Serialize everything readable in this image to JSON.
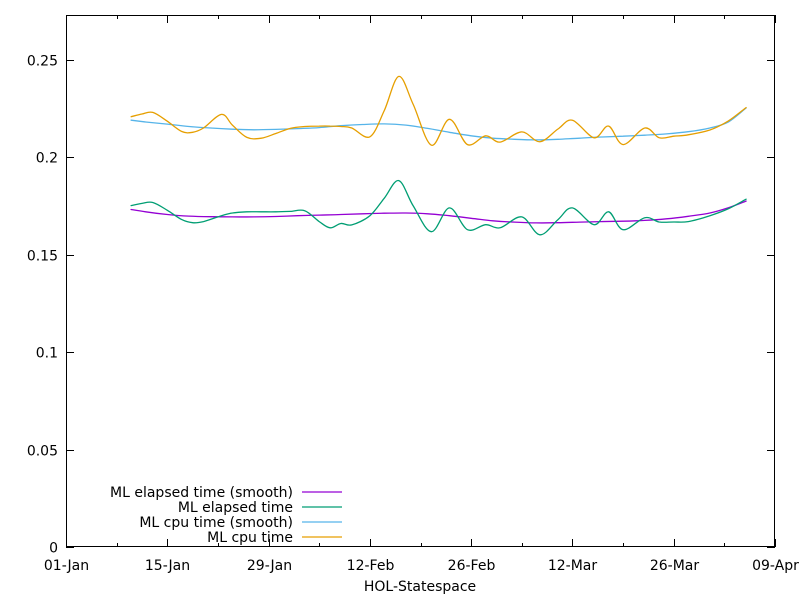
{
  "window": {
    "background": "#ffffff",
    "border_color": "#000000",
    "text_color": "#000000"
  },
  "chart_data": {
    "type": "line",
    "title": "",
    "xlabel": "HOL-Statespace",
    "ylabel": "",
    "grid": false,
    "legend": {
      "position": "inside-bottom-left",
      "entries_follow_series_order": true
    },
    "x_axis": {
      "kind": "date",
      "range_days": [
        0,
        98
      ],
      "major_ticks": [
        {
          "day": 0,
          "label": "01-Jan"
        },
        {
          "day": 14,
          "label": "15-Jan"
        },
        {
          "day": 28,
          "label": "29-Jan"
        },
        {
          "day": 42,
          "label": "12-Feb"
        },
        {
          "day": 56,
          "label": "26-Feb"
        },
        {
          "day": 70,
          "label": "12-Mar"
        },
        {
          "day": 84,
          "label": "26-Mar"
        },
        {
          "day": 98,
          "label": "09-Apr"
        }
      ],
      "minor_tick_days": [
        7,
        21,
        35,
        49,
        63,
        77,
        91
      ]
    },
    "y_axis": {
      "range": [
        0,
        0.273
      ],
      "ticks": [
        {
          "value": 0,
          "label": "0"
        },
        {
          "value": 0.05,
          "label": "0.05"
        },
        {
          "value": 0.1,
          "label": "0.1"
        },
        {
          "value": 0.15,
          "label": "0.15"
        },
        {
          "value": 0.2,
          "label": "0.2"
        },
        {
          "value": 0.25,
          "label": "0.25"
        }
      ]
    },
    "series": [
      {
        "name": "ML elapsed time (smooth)",
        "color": "#9400d3",
        "days": [
          9,
          11,
          14,
          17,
          20,
          23,
          26,
          29,
          32,
          35,
          38,
          41,
          44,
          47,
          50,
          53,
          56,
          59,
          62,
          65,
          68,
          71,
          74,
          77,
          80,
          83,
          86,
          89,
          91.5,
          94
        ],
        "values": [
          0.1732,
          0.172,
          0.1706,
          0.1698,
          0.1695,
          0.1694,
          0.1694,
          0.1696,
          0.17,
          0.1703,
          0.1706,
          0.171,
          0.1713,
          0.1714,
          0.171,
          0.17,
          0.1687,
          0.1674,
          0.1667,
          0.1663,
          0.1664,
          0.1667,
          0.167,
          0.1672,
          0.1676,
          0.1684,
          0.1697,
          0.1714,
          0.174,
          0.1775
        ]
      },
      {
        "name": "ML elapsed time",
        "color": "#009e73",
        "days": [
          9,
          10.5,
          12,
          14,
          16,
          17.5,
          19,
          21.5,
          23,
          25,
          27,
          29,
          31,
          33,
          35,
          36.5,
          38,
          39.5,
          42,
          44,
          46,
          48,
          50.5,
          53,
          55.5,
          58,
          60,
          63,
          65.5,
          68,
          70,
          73,
          75,
          77,
          80,
          82,
          84,
          86,
          89,
          91.5,
          94
        ],
        "values": [
          0.1752,
          0.1763,
          0.1768,
          0.1728,
          0.168,
          0.1664,
          0.167,
          0.17,
          0.1714,
          0.172,
          0.172,
          0.172,
          0.1722,
          0.1726,
          0.167,
          0.1638,
          0.166,
          0.1653,
          0.17,
          0.179,
          0.188,
          0.175,
          0.1618,
          0.174,
          0.1628,
          0.1654,
          0.1638,
          0.1694,
          0.1602,
          0.168,
          0.174,
          0.1654,
          0.172,
          0.1628,
          0.169,
          0.1668,
          0.1668,
          0.167,
          0.17,
          0.1735,
          0.1785
        ]
      },
      {
        "name": "ML cpu time (smooth)",
        "color": "#56b4e9",
        "days": [
          9,
          11,
          14,
          17,
          20,
          23,
          26,
          29,
          32,
          35,
          38,
          41,
          44,
          47,
          50,
          53,
          56,
          59,
          62,
          65,
          68,
          71,
          74,
          77,
          80,
          83,
          86,
          89,
          91.5,
          94
        ],
        "values": [
          0.219,
          0.2181,
          0.217,
          0.2158,
          0.215,
          0.2144,
          0.2141,
          0.2143,
          0.2147,
          0.2152,
          0.2162,
          0.2168,
          0.2171,
          0.2165,
          0.2148,
          0.2128,
          0.211,
          0.2098,
          0.2092,
          0.2089,
          0.2092,
          0.2098,
          0.2104,
          0.2108,
          0.2113,
          0.212,
          0.2131,
          0.215,
          0.218,
          0.2253
        ]
      },
      {
        "name": "ML cpu time",
        "color": "#e69f00",
        "days": [
          9,
          10.5,
          12,
          14,
          16,
          17.5,
          19,
          21.5,
          23,
          25,
          27,
          29,
          31,
          33,
          35,
          36.5,
          38,
          39.5,
          42,
          44,
          46,
          48,
          50.5,
          53,
          55.5,
          58,
          60,
          63,
          65.5,
          68,
          70,
          73,
          75,
          77,
          80,
          82,
          84,
          86,
          89,
          91.5,
          94
        ],
        "values": [
          0.2208,
          0.2222,
          0.223,
          0.2185,
          0.2132,
          0.2128,
          0.215,
          0.222,
          0.2165,
          0.2102,
          0.2098,
          0.2122,
          0.2148,
          0.2158,
          0.216,
          0.216,
          0.2158,
          0.215,
          0.2105,
          0.224,
          0.2415,
          0.227,
          0.2062,
          0.2195,
          0.2065,
          0.211,
          0.2078,
          0.213,
          0.208,
          0.2145,
          0.219,
          0.21,
          0.216,
          0.2065,
          0.215,
          0.21,
          0.2108,
          0.2115,
          0.214,
          0.2185,
          0.2255
        ]
      }
    ]
  }
}
